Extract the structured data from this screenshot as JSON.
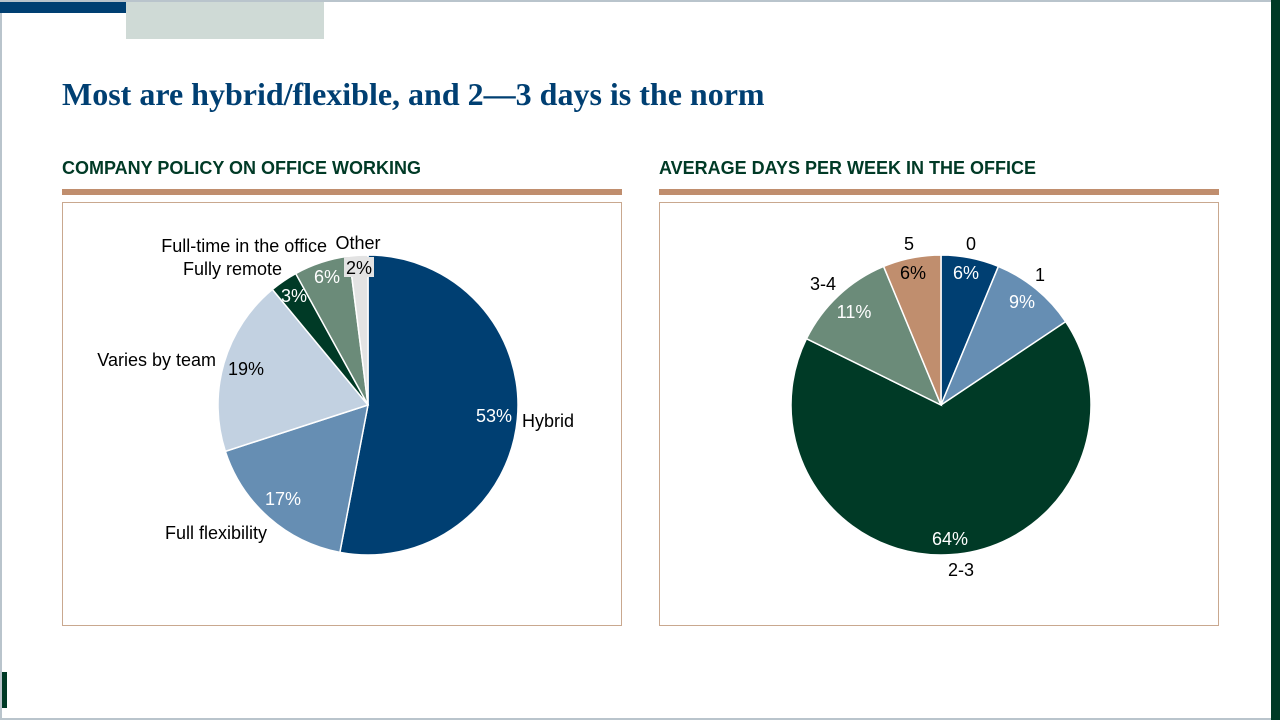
{
  "slide": {
    "title": "Most are hybrid/flexible, and 2—3 days is the norm",
    "colors": {
      "navy": "#003f72",
      "mid_blue": "#668eb3",
      "light_blue": "#c2d1e1",
      "dark_green": "#003a26",
      "sage": "#6b8b79",
      "light_gray": "#e3e3e3",
      "tan": "#c08e6e"
    }
  },
  "panels": [
    {
      "heading": "COMPANY POLICY ON OFFICE WORKING"
    },
    {
      "heading": "AVERAGE DAYS PER WEEK IN THE OFFICE"
    }
  ],
  "chart_data": [
    {
      "type": "pie",
      "title": "COMPANY POLICY ON OFFICE WORKING",
      "start_angle": "12 o'clock",
      "direction": "clockwise",
      "slices": [
        {
          "label": "Hybrid",
          "value": 53,
          "value_label": "53%",
          "color": "#003f72"
        },
        {
          "label": "Full flexibility",
          "value": 17,
          "value_label": "17%",
          "color": "#668eb3"
        },
        {
          "label": "Varies by team",
          "value": 19,
          "value_label": "19%",
          "color": "#c2d1e1"
        },
        {
          "label": "Fully remote",
          "value": 3,
          "value_label": "3%",
          "color": "#003a26"
        },
        {
          "label": "Full-time in the office",
          "value": 6,
          "value_label": "6%",
          "color": "#6b8b79"
        },
        {
          "label": "Other",
          "value": 2,
          "value_label": "2%",
          "color": "#e3e3e3"
        }
      ]
    },
    {
      "type": "pie",
      "title": "AVERAGE DAYS PER WEEK IN THE OFFICE",
      "start_angle": "12 o'clock",
      "direction": "clockwise",
      "slices": [
        {
          "label": "0",
          "value": 6,
          "value_label": "6%",
          "color": "#003f72"
        },
        {
          "label": "1",
          "value": 9,
          "value_label": "9%",
          "color": "#668eb3"
        },
        {
          "label": "2-3",
          "value": 64,
          "value_label": "64%",
          "color": "#003a26"
        },
        {
          "label": "3-4",
          "value": 11,
          "value_label": "11%",
          "color": "#6b8b79"
        },
        {
          "label": "5",
          "value": 6,
          "value_label": "6%",
          "color": "#c08e6e"
        }
      ]
    }
  ]
}
